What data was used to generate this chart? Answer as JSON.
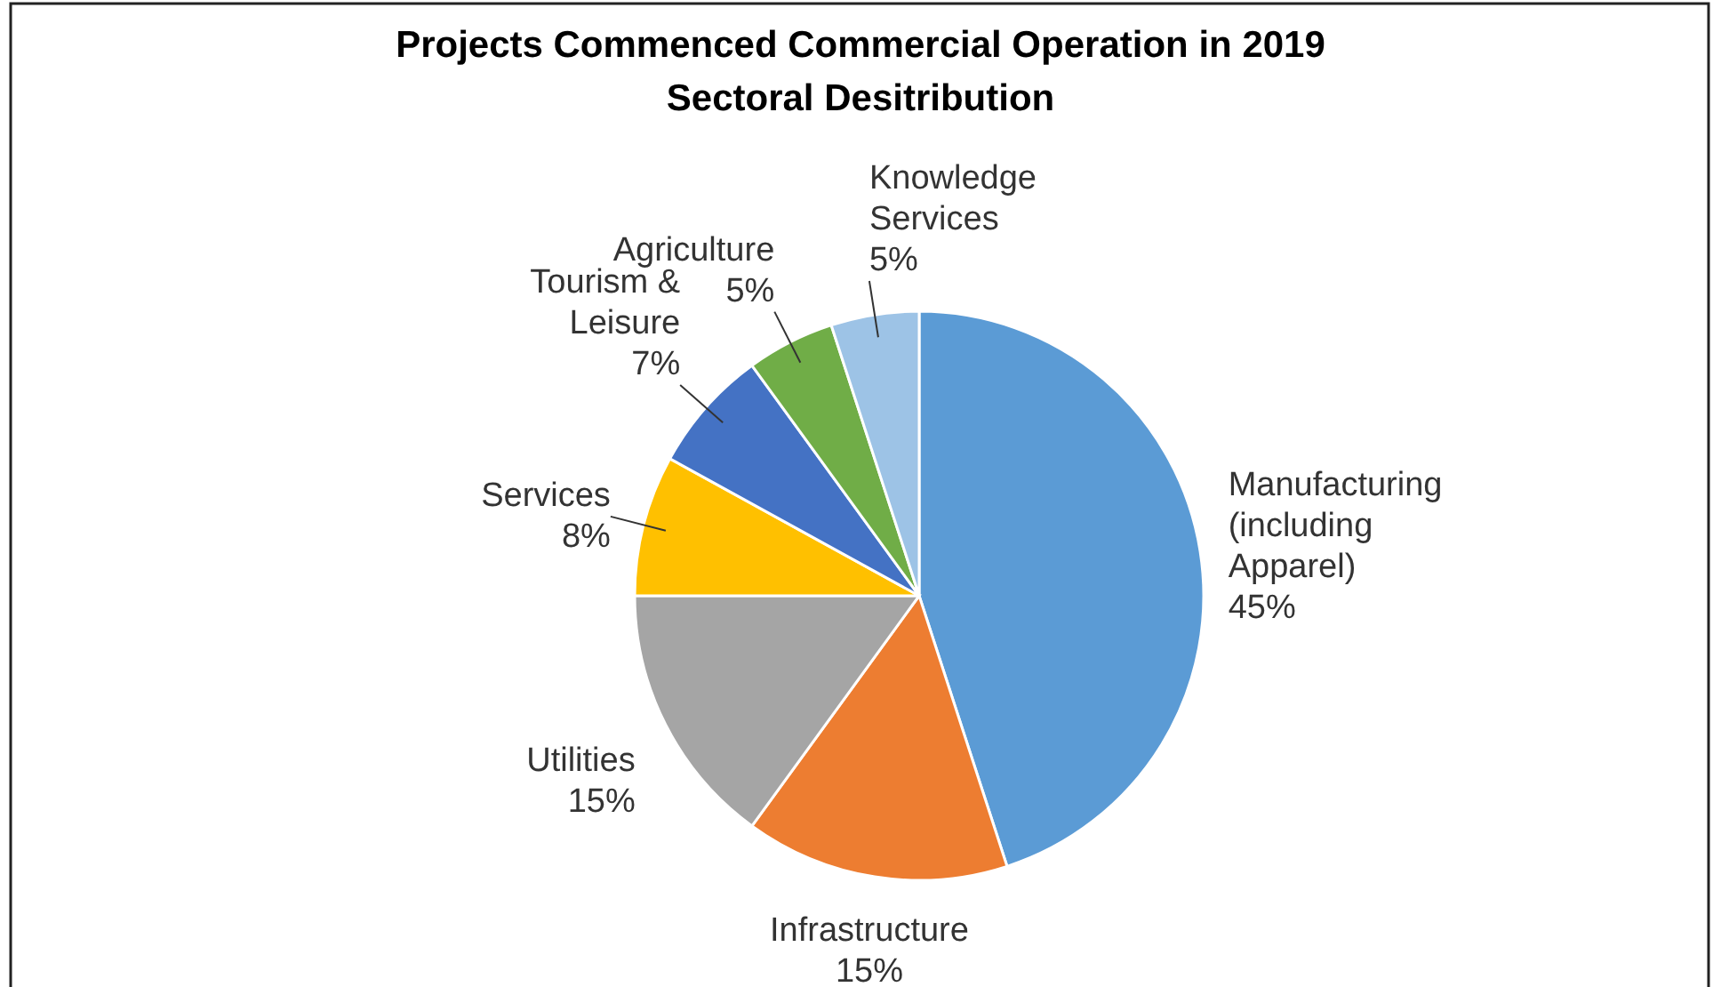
{
  "chart_data": {
    "type": "pie",
    "title": "Projects Commenced Commercial Operation in 2019",
    "subtitle": "Sectoral Desitribution",
    "categories": [
      "Manufacturing (including Apparel)",
      "Infrastructure",
      "Utilities",
      "Services",
      "Tourism & Leisure",
      "Agriculture",
      "Knowledge Services"
    ],
    "values": [
      45,
      15,
      15,
      8,
      7,
      5,
      5
    ],
    "colors": [
      "#5b9bd5",
      "#ed7d31",
      "#a5a5a5",
      "#ffc000",
      "#4472c4",
      "#70ad47",
      "#9dc3e6"
    ],
    "value_labels": [
      "45%",
      "15%",
      "15%",
      "8%",
      "7%",
      "5%",
      "5%"
    ],
    "legend": false
  }
}
